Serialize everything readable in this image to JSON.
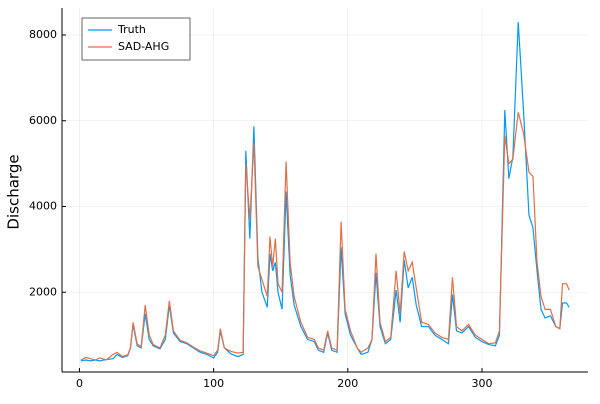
{
  "chart_data": {
    "type": "line",
    "y_label": "Discharge",
    "x": [
      1,
      5,
      8,
      12,
      15,
      20,
      25,
      28,
      32,
      36,
      38,
      40,
      43,
      46,
      49,
      52,
      55,
      60,
      64,
      67,
      70,
      75,
      80,
      85,
      90,
      95,
      100,
      103,
      105,
      108,
      113,
      118,
      122,
      124,
      127,
      130,
      133,
      136,
      140,
      142,
      144,
      146,
      148,
      151,
      154,
      157,
      160,
      165,
      170,
      175,
      178,
      182,
      185,
      188,
      192,
      195,
      198,
      202,
      207,
      210,
      215,
      218,
      221,
      224,
      228,
      232,
      236,
      239,
      242,
      245,
      248,
      251,
      255,
      260,
      265,
      270,
      275,
      278,
      281,
      285,
      290,
      295,
      300,
      305,
      310,
      313,
      317,
      320,
      323,
      327,
      331,
      335,
      338,
      341,
      344,
      347,
      351,
      355,
      358,
      360,
      363,
      365
    ],
    "series": [
      {
        "name": "Truth",
        "color": "#009af9",
        "values": [
          400,
          420,
          400,
          420,
          400,
          430,
          450,
          550,
          480,
          520,
          700,
          1250,
          750,
          700,
          1500,
          900,
          750,
          680,
          900,
          1700,
          1050,
          850,
          800,
          700,
          600,
          550,
          470,
          600,
          1100,
          700,
          560,
          500,
          550,
          5300,
          3250,
          5870,
          2800,
          2000,
          1650,
          2900,
          2500,
          2700,
          2000,
          1600,
          4350,
          2400,
          1700,
          1200,
          900,
          850,
          650,
          600,
          1050,
          650,
          600,
          3050,
          1500,
          1000,
          700,
          550,
          600,
          900,
          2450,
          1200,
          800,
          900,
          2050,
          1300,
          2750,
          2100,
          2350,
          1700,
          1200,
          1200,
          1000,
          900,
          800,
          1950,
          1100,
          1050,
          1200,
          950,
          850,
          780,
          750,
          1000,
          6250,
          4650,
          5150,
          8300,
          6200,
          3800,
          3500,
          2500,
          1600,
          1400,
          1450,
          1200,
          1150,
          1750,
          1750,
          1650
        ]
      },
      {
        "name": "SAD-AHG",
        "color": "#e26f46",
        "values": [
          420,
          480,
          450,
          420,
          470,
          420,
          550,
          600,
          500,
          540,
          700,
          1300,
          800,
          720,
          1700,
          1000,
          780,
          700,
          1000,
          1800,
          1100,
          880,
          820,
          720,
          630,
          580,
          520,
          650,
          1150,
          700,
          620,
          580,
          600,
          5000,
          3700,
          5500,
          2600,
          2300,
          1900,
          3300,
          2600,
          3250,
          2200,
          2000,
          5050,
          2700,
          1900,
          1300,
          950,
          900,
          700,
          650,
          1100,
          700,
          650,
          3650,
          1600,
          1100,
          700,
          600,
          700,
          900,
          2900,
          1300,
          850,
          950,
          2500,
          1500,
          2950,
          2500,
          2700,
          2100,
          1300,
          1250,
          1050,
          950,
          900,
          2350,
          1200,
          1100,
          1250,
          1000,
          900,
          800,
          820,
          1100,
          5650,
          5000,
          5100,
          6200,
          5700,
          4800,
          4700,
          2700,
          1900,
          1600,
          1600,
          1200,
          1150,
          2200,
          2200,
          2050
        ]
      }
    ],
    "xlim": [
      -13,
      379
    ],
    "ylim": [
      140,
      8630
    ],
    "xticks": [
      0,
      100,
      200,
      300
    ],
    "yticks": [
      2000,
      4000,
      6000,
      8000
    ],
    "grid": true,
    "legend": "top-left"
  }
}
